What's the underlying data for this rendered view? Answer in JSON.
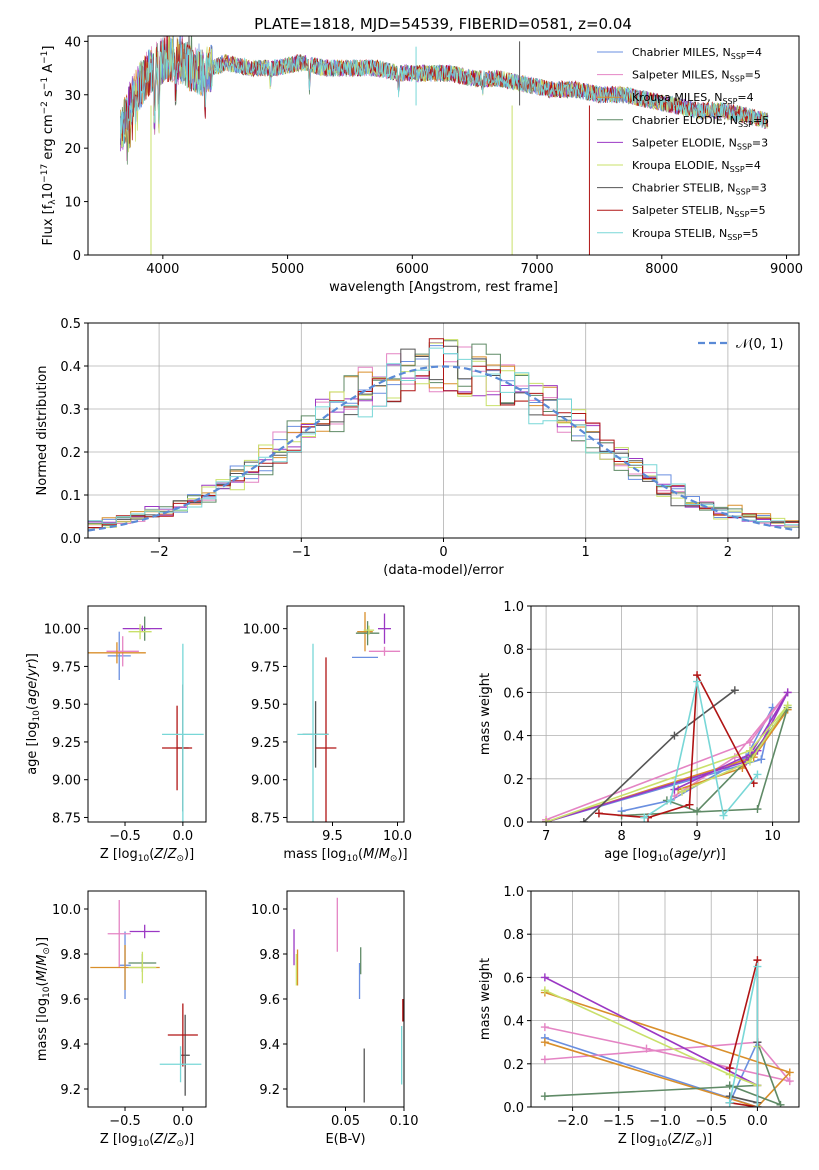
{
  "figure_title": "PLATE=1818, MJD=54539, FIBERID=0581, z=0.04",
  "colors": [
    "#6a8fe0",
    "#e484c4",
    "#d98f2b",
    "#5f8a66",
    "#9b38c4",
    "#c9e06a",
    "#555555",
    "#b01515",
    "#78d7d7"
  ],
  "legend": [
    "Chabrier MILES, N_SSP=4",
    "Salpeter MILES, N_SSP=5",
    "Kroupa MILES, N_SSP=4",
    "Chabrier ELODIE, N_SSP=5",
    "Salpeter ELODIE, N_SSP=3",
    "Kroupa ELODIE, N_SSP=4",
    "Chabrier STELIB, N_SSP=3",
    "Salpeter STELIB, N_SSP=5",
    "Kroupa STELIB, N_SSP=5"
  ],
  "chart_data": [
    {
      "id": "spectrum",
      "type": "line",
      "title": "PLATE=1818, MJD=54539, FIBERID=0581, z=0.04",
      "xlabel": "wavelength [Angstrom, rest frame]",
      "ylabel": "Flux [f_λ 10^-17 erg cm^-2 s^-1 A^-1]",
      "xlim": [
        3400,
        9100
      ],
      "ylim": [
        0,
        41
      ],
      "xticks": [
        4000,
        5000,
        6000,
        7000,
        8000,
        9000
      ],
      "yticks": [
        0,
        10,
        20,
        30,
        40
      ],
      "continuum": {
        "x": [
          3650,
          3750,
          3850,
          3950,
          4050,
          4150,
          4300,
          4500,
          4700,
          4900,
          5100,
          5300,
          5500,
          5700,
          5900,
          6100,
          6300,
          6500,
          6700,
          6900,
          7100,
          7300,
          7500,
          7700,
          7900,
          8100,
          8300,
          8500,
          8700,
          8850
        ],
        "y": [
          22,
          29,
          33,
          36,
          37,
          36,
          34,
          36,
          35,
          35,
          36,
          35,
          35,
          35,
          34,
          34,
          34,
          33,
          33,
          32,
          31,
          31,
          30,
          30,
          29,
          28,
          27,
          27,
          26,
          25
        ]
      },
      "legend_position": "upper right"
    },
    {
      "id": "residuals",
      "type": "histogram",
      "xlabel": "(data-model)/error",
      "ylabel": "Normed distribution",
      "xlim": [
        -2.5,
        2.5
      ],
      "ylim": [
        0,
        0.5
      ],
      "xticks": [
        -2,
        -1,
        0,
        1,
        2
      ],
      "yticks": [
        0,
        0.1,
        0.2,
        0.3,
        0.4,
        0.5
      ],
      "bin_width": 0.1,
      "grid": true,
      "reference_curve": "𝒩(0, 1)",
      "legend_position": "upper right"
    },
    {
      "id": "age_vs_Z",
      "type": "errorbar",
      "xlabel": "Z [log10(Z/Z⊙)]",
      "ylabel": "age  [log10(age/yr)]",
      "xlim": [
        -0.82,
        0.2
      ],
      "ylim": [
        8.72,
        10.15
      ],
      "xticks": [
        -0.5,
        0.0
      ],
      "yticks": [
        8.75,
        9.0,
        9.25,
        9.5,
        9.75,
        10.0
      ],
      "points": [
        {
          "x": -0.55,
          "y": 9.82,
          "xerr": 0.1,
          "yerr": 0.16
        },
        {
          "x": -0.52,
          "y": 9.85,
          "xerr": 0.14,
          "yerr": 0.1
        },
        {
          "x": -0.57,
          "y": 9.84,
          "xerr": 0.25,
          "yerr": 0.07
        },
        {
          "x": -0.33,
          "y": 10.0,
          "xerr": 0.05,
          "yerr": 0.08
        },
        {
          "x": -0.35,
          "y": 10.0,
          "xerr": 0.17,
          "yerr": 0.02
        },
        {
          "x": -0.37,
          "y": 9.98,
          "xerr": 0.1,
          "yerr": 0.05
        },
        {
          "x": 0.0,
          "y": 9.21,
          "xerr": 0.05,
          "yerr": 0.42
        },
        {
          "x": -0.05,
          "y": 9.21,
          "xerr": 0.13,
          "yerr": 0.28
        },
        {
          "x": 0.0,
          "y": 9.3,
          "xerr": 0.18,
          "yerr": 0.6
        }
      ]
    },
    {
      "id": "age_vs_mass",
      "type": "errorbar",
      "xlabel": "mass [log10(M/M⊙)]",
      "ylabel": "",
      "xlim": [
        9.15,
        10.05
      ],
      "ylim": [
        8.72,
        10.15
      ],
      "xticks": [
        9.5,
        10.0
      ],
      "yticks": [
        8.75,
        9.0,
        9.25,
        9.5,
        9.75,
        10.0
      ],
      "points": [
        {
          "x": 9.75,
          "y": 9.81,
          "xerr": 0.1,
          "yerr": 0.0
        },
        {
          "x": 9.9,
          "y": 9.85,
          "xerr": 0.12,
          "yerr": 0.03
        },
        {
          "x": 9.75,
          "y": 9.98,
          "xerr": 0.06,
          "yerr": 0.13
        },
        {
          "x": 9.77,
          "y": 9.97,
          "xerr": 0.09,
          "yerr": 0.08
        },
        {
          "x": 9.9,
          "y": 10.0,
          "xerr": 0.05,
          "yerr": 0.1
        },
        {
          "x": 9.78,
          "y": 9.99,
          "xerr": 0.04,
          "yerr": 0.03
        },
        {
          "x": 9.37,
          "y": 9.3,
          "xerr": 0.1,
          "yerr": 0.22
        },
        {
          "x": 9.45,
          "y": 9.21,
          "xerr": 0.08,
          "yerr": 0.6
        },
        {
          "x": 9.35,
          "y": 9.3,
          "xerr": 0.12,
          "yerr": 0.6
        }
      ]
    },
    {
      "id": "weight_vs_age",
      "type": "line",
      "xlabel": "age  [log10(age/yr)]",
      "ylabel": "mass weight",
      "xlim": [
        6.8,
        10.35
      ],
      "ylim": [
        0,
        1.0
      ],
      "xticks": [
        7,
        8,
        9,
        10
      ],
      "yticks": [
        0.0,
        0.2,
        0.4,
        0.6,
        0.8,
        1.0
      ],
      "grid": true,
      "series": [
        {
          "x": [
            7.0,
            9.85,
            10.0,
            9.65,
            8.65,
            8.0
          ],
          "y": [
            0.0,
            0.29,
            0.53,
            0.3,
            0.1,
            0.05
          ]
        },
        {
          "x": [
            7.0,
            9.7,
            10.2,
            9.5,
            8.7
          ],
          "y": [
            0.01,
            0.37,
            0.6,
            0.3,
            0.12
          ]
        },
        {
          "x": [
            7.0,
            9.75,
            10.2,
            9.6,
            8.75
          ],
          "y": [
            0.0,
            0.3,
            0.52,
            0.25,
            0.15
          ]
        },
        {
          "x": [
            8.0,
            9.8,
            10.2,
            9.7,
            9.0,
            8.6
          ],
          "y": [
            0.03,
            0.06,
            0.53,
            0.3,
            0.05,
            0.1
          ]
        },
        {
          "x": [
            7.0,
            9.65,
            10.2,
            9.8,
            8.7
          ],
          "y": [
            0.0,
            0.28,
            0.6,
            0.33,
            0.15
          ]
        },
        {
          "x": [
            7.0,
            9.7,
            10.2,
            9.7,
            8.8
          ],
          "y": [
            0.0,
            0.33,
            0.54,
            0.28,
            0.14
          ]
        },
        {
          "x": [
            7.5,
            8.7,
            9.5
          ],
          "y": [
            0.0,
            0.4,
            0.61
          ]
        },
        {
          "x": [
            7.7,
            8.35,
            8.9,
            9.0,
            9.75
          ],
          "y": [
            0.04,
            0.02,
            0.08,
            0.68,
            0.18
          ]
        },
        {
          "x": [
            8.3,
            8.65,
            9.0,
            9.35,
            9.8
          ],
          "y": [
            0.02,
            0.1,
            0.65,
            0.03,
            0.22
          ]
        }
      ]
    },
    {
      "id": "mass_vs_Z",
      "type": "errorbar",
      "xlabel": "Z [log10(Z/Z⊙)]",
      "ylabel": "mass [log10(M/M⊙)]",
      "xlim": [
        -0.82,
        0.2
      ],
      "ylim": [
        9.12,
        10.08
      ],
      "xticks": [
        -0.5,
        0.0
      ],
      "yticks": [
        9.2,
        9.4,
        9.6,
        9.8,
        10.0
      ],
      "points": [
        {
          "x": -0.5,
          "y": 9.75,
          "xerr": 0.05,
          "yerr": 0.15
        },
        {
          "x": -0.55,
          "y": 9.89,
          "xerr": 0.1,
          "yerr": 0.15
        },
        {
          "x": -0.5,
          "y": 9.74,
          "xerr": 0.3,
          "yerr": 0.1
        },
        {
          "x": -0.35,
          "y": 9.76,
          "xerr": 0.12,
          "yerr": 0.04
        },
        {
          "x": -0.33,
          "y": 9.9,
          "xerr": 0.13,
          "yerr": 0.03
        },
        {
          "x": -0.35,
          "y": 9.74,
          "xerr": 0.12,
          "yerr": 0.07
        },
        {
          "x": 0.02,
          "y": 9.35,
          "xerr": 0.04,
          "yerr": 0.18
        },
        {
          "x": 0.0,
          "y": 9.44,
          "xerr": 0.13,
          "yerr": 0.14
        },
        {
          "x": -0.02,
          "y": 9.31,
          "xerr": 0.18,
          "yerr": 0.08
        }
      ]
    },
    {
      "id": "mass_vs_EBV",
      "type": "errorbar",
      "xlabel": "E(B-V)",
      "ylabel": "",
      "xlim": [
        0.0,
        0.1
      ],
      "ylim": [
        9.12,
        10.08
      ],
      "xticks": [
        0.05,
        0.1
      ],
      "yticks": [
        9.2,
        9.4,
        9.6,
        9.8,
        10.0
      ],
      "points": [
        {
          "x": 0.062,
          "y": 9.68,
          "xerr": 0.0,
          "yerr": 0.08
        },
        {
          "x": 0.043,
          "y": 9.93,
          "xerr": 0.0,
          "yerr": 0.12
        },
        {
          "x": 0.009,
          "y": 9.74,
          "xerr": 0.0,
          "yerr": 0.08
        },
        {
          "x": 0.063,
          "y": 9.77,
          "xerr": 0.0,
          "yerr": 0.06
        },
        {
          "x": 0.006,
          "y": 9.83,
          "xerr": 0.0,
          "yerr": 0.08
        },
        {
          "x": 0.008,
          "y": 9.73,
          "xerr": 0.0,
          "yerr": 0.07
        },
        {
          "x": 0.066,
          "y": 9.26,
          "xerr": 0.0,
          "yerr": 0.12
        },
        {
          "x": 0.099,
          "y": 9.55,
          "xerr": 0.0,
          "yerr": 0.05
        },
        {
          "x": 0.098,
          "y": 9.35,
          "xerr": 0.0,
          "yerr": 0.13
        }
      ]
    },
    {
      "id": "weight_vs_Z",
      "type": "line",
      "xlabel": "Z [log10(Z/Z⊙)]",
      "ylabel": "mass weight",
      "xlim": [
        -2.45,
        0.45
      ],
      "ylim": [
        0,
        1.0
      ],
      "xticks": [
        -2.0,
        -1.5,
        -1.0,
        -0.5,
        0.0
      ],
      "yticks": [
        0.0,
        0.2,
        0.4,
        0.6,
        0.8,
        1.0
      ],
      "grid": true,
      "series": [
        {
          "x": [
            -2.3,
            0.0,
            0.0,
            -0.3
          ],
          "y": [
            0.32,
            0.0,
            0.3,
            0.02
          ]
        },
        {
          "x": [
            -2.3,
            -1.2,
            0.35,
            0.0,
            -2.3
          ],
          "y": [
            0.37,
            0.27,
            0.12,
            0.3,
            0.22
          ]
        },
        {
          "x": [
            -2.3,
            0.35,
            0.0,
            -2.3
          ],
          "y": [
            0.53,
            0.16,
            0.0,
            0.3
          ]
        },
        {
          "x": [
            -2.3,
            0.0,
            0.0,
            0.25,
            -0.3
          ],
          "y": [
            0.05,
            0.1,
            0.3,
            0.01,
            0.1
          ]
        },
        {
          "x": [
            -2.3,
            0.0,
            0.0
          ],
          "y": [
            0.6,
            0.1,
            0.3
          ]
        },
        {
          "x": [
            -2.3,
            -0.3,
            0.0,
            0.0
          ],
          "y": [
            0.54,
            0.15,
            0.1,
            0.28
          ]
        },
        {
          "x": [
            -0.3,
            0.0,
            0.0
          ],
          "y": [
            0.05,
            0.02,
            0.3
          ]
        },
        {
          "x": [
            -0.3,
            0.0,
            0.0,
            -0.3
          ],
          "y": [
            0.18,
            0.68,
            0.0,
            0.02
          ]
        },
        {
          "x": [
            0.0,
            0.0,
            -0.3
          ],
          "y": [
            0.0,
            0.65,
            0.02
          ]
        }
      ]
    }
  ]
}
